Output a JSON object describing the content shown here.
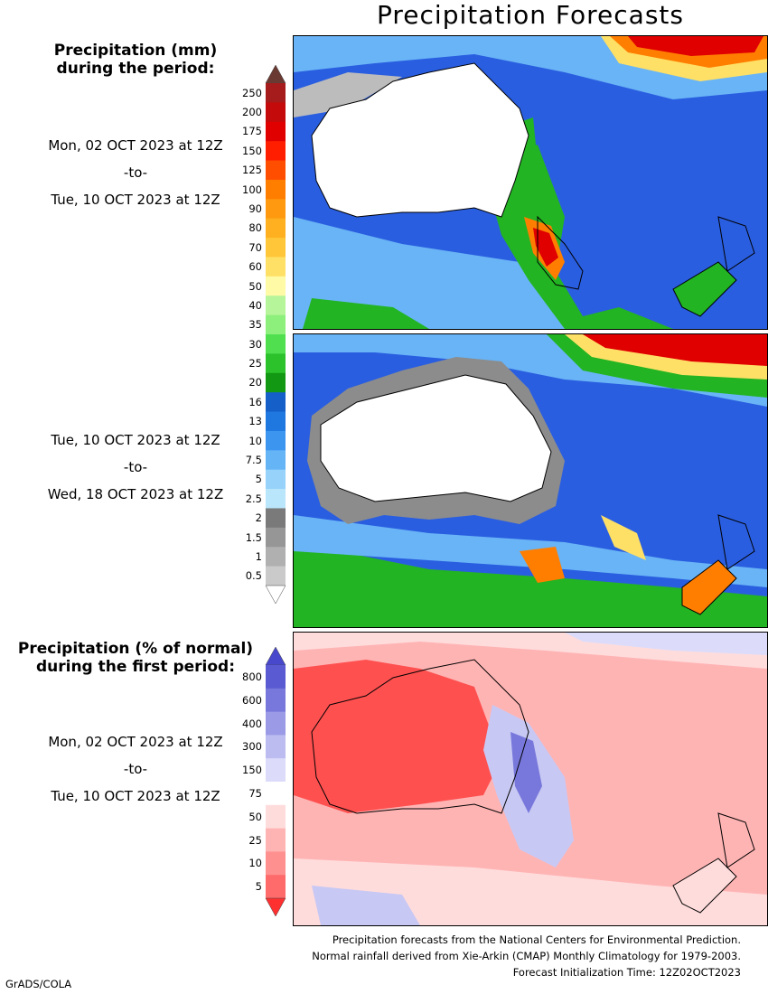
{
  "title": "Precipitation Forecasts",
  "precip_legend": {
    "heading_line1": "Precipitation (mm)",
    "heading_line2": "during the period:",
    "ticks": [
      "250",
      "200",
      "175",
      "150",
      "125",
      "100",
      "90",
      "80",
      "70",
      "60",
      "50",
      "40",
      "35",
      "30",
      "25",
      "20",
      "16",
      "13",
      "10",
      "7.5",
      "5",
      "2.5",
      "2",
      "1.5",
      "1",
      "0.5"
    ],
    "colors": [
      "#a61b1b",
      "#c40a0a",
      "#e00000",
      "#ff1e00",
      "#ff4e00",
      "#ff7e00",
      "#ff9a10",
      "#ffb020",
      "#ffc63a",
      "#ffe066",
      "#fffaa6",
      "#b6f59a",
      "#8ef07c",
      "#4fdf4f",
      "#2cc22c",
      "#129812",
      "#1460c8",
      "#1e78e0",
      "#3c96f0",
      "#64b4f6",
      "#96d2fa",
      "#bae6fc",
      "#7a7a7a",
      "#969696",
      "#b0b0b0",
      "#cacaca"
    ],
    "top_arrow_color": "#6a3a32"
  },
  "periods": [
    {
      "from": "Mon, 02 OCT 2023 at 12Z",
      "sep": "-to-",
      "to": "Tue, 10 OCT 2023 at 12Z"
    },
    {
      "from": "Tue, 10 OCT 2023 at 12Z",
      "sep": "-to-",
      "to": "Wed, 18 OCT 2023 at 12Z"
    }
  ],
  "normal_legend": {
    "heading_line1": "Precipitation (% of normal)",
    "heading_line2": "during the first period:",
    "ticks": [
      "800",
      "600",
      "400",
      "300",
      "150",
      "75",
      "50",
      "25",
      "10",
      "5"
    ],
    "colors": [
      "#5a5ad2",
      "#7878dc",
      "#9a9ae6",
      "#bcbcf0",
      "#dcdcfa",
      "#ffffff",
      "#ffdcdc",
      "#ffb4b4",
      "#ff9090",
      "#ff6a6a"
    ],
    "period": {
      "from": "Mon, 02 OCT 2023 at 12Z",
      "sep": "-to-",
      "to": "Tue, 10 OCT 2023 at 12Z"
    }
  },
  "footer": {
    "line1": "Precipitation forecasts from the National Centers for Environmental Prediction.",
    "line2": "Normal rainfall derived from Xie-Arkin (CMAP) Monthly Climatology for 1979-2003.",
    "line3": "Forecast Initialization Time: 12Z02OCT2023"
  },
  "credit": "GrADS/COLA",
  "map_colors": {
    "ocean_blue": "#2a5ee0",
    "light_blue": "#68b4f6",
    "pale_blue": "#a6dcfb",
    "green": "#22b422",
    "dark_green": "#128a12",
    "gray": "#8c8c8c",
    "light_gray": "#bcbcbc",
    "red": "#e00000",
    "orange": "#ff7e00",
    "yellow": "#ffe066",
    "pct_red": "#ff5050",
    "pct_pink": "#ffb4b4",
    "pct_lightpink": "#ffdcdc",
    "pct_lavender": "#c8c8f4",
    "pct_blue": "#7878dc"
  }
}
